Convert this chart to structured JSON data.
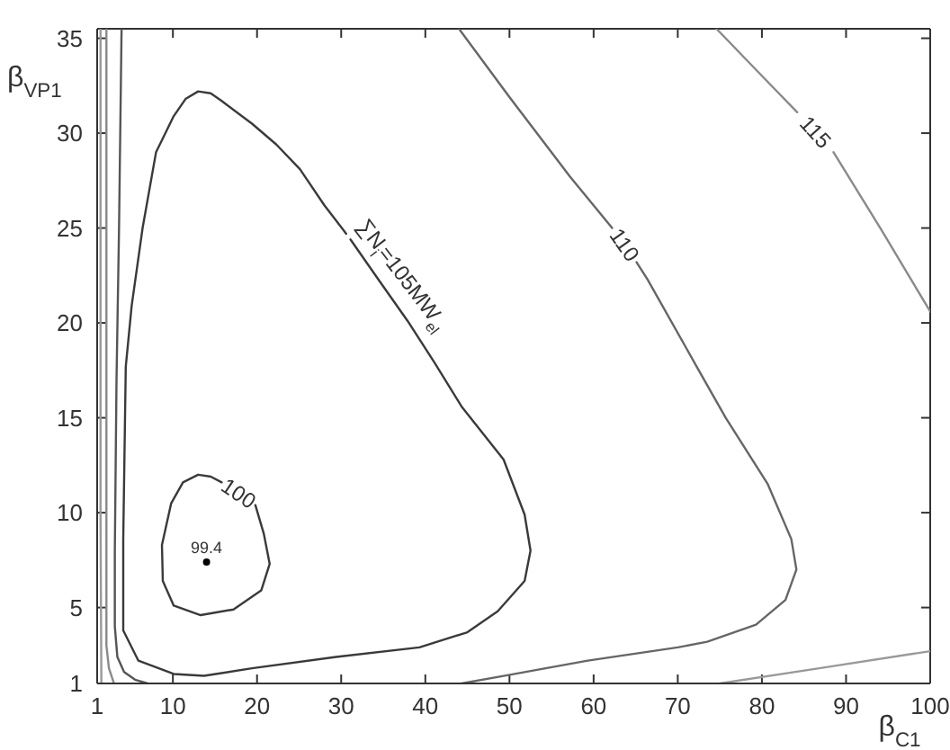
{
  "chart_data": {
    "type": "line",
    "xlabel": "β$_{C1}$",
    "ylabel": "β$_{VP1}$",
    "xlim": [
      1,
      100
    ],
    "ylim": [
      1,
      35.5
    ],
    "xticks": [
      1,
      10,
      20,
      30,
      40,
      50,
      60,
      70,
      80,
      90,
      100
    ],
    "yticks": [
      1,
      5,
      10,
      15,
      20,
      25,
      30,
      35
    ],
    "series": [
      {
        "color": "#3a3a3a",
        "x": [
          19.8,
          20.8,
          21.5,
          20.5,
          17.2,
          13.3,
          10.1,
          8.8,
          8.7,
          9.8,
          11.2,
          13.0,
          14.5,
          15.8
        ],
        "values": [
          10.4,
          8.9,
          7.3,
          5.9,
          4.9,
          4.6,
          5.1,
          6.4,
          8.3,
          10.5,
          11.6,
          12.0,
          11.9,
          11.6
        ]
      },
      {
        "color": "#3a3a3a",
        "x": [
          31.1,
          34.4,
          37.9,
          41.1,
          44.3,
          49.3,
          51.8,
          52.5,
          51.8,
          48.6,
          45.0,
          39.3,
          29.4,
          19.4,
          13.7,
          10.1,
          5.9,
          4.1,
          4.1,
          4.4,
          5.1,
          6.4,
          8.0,
          10.1,
          11.5,
          13.0,
          14.5,
          15.8,
          19.4,
          22.3,
          25.1,
          28.0,
          30.6
        ],
        "values": [
          24.4,
          22.3,
          20.1,
          17.9,
          15.6,
          12.8,
          9.9,
          8.0,
          6.4,
          4.8,
          3.7,
          2.9,
          2.4,
          1.8,
          1.4,
          1.5,
          2.2,
          3.8,
          8.6,
          17.7,
          20.9,
          25.0,
          29.0,
          30.9,
          31.8,
          32.2,
          32.1,
          31.7,
          30.5,
          29.4,
          28.1,
          26.2,
          24.7
        ]
      },
      {
        "color": "#666666",
        "x": [
          44.0,
          50.0,
          57.2,
          62.2,
          63.7,
          65.1,
          66.4,
          72.5,
          75.7,
          80.7,
          83.5,
          84.1,
          82.8,
          79.3,
          73.5,
          70.0,
          59.3,
          49.3,
          44.3
        ],
        "values": [
          35.5,
          31.9,
          27.7,
          25.0,
          null,
          23.2,
          22.3,
          17.5,
          15.0,
          11.5,
          8.6,
          7.0,
          5.4,
          4.1,
          3.2,
          2.9,
          2.2,
          1.4,
          1.0
        ]
      },
      {
        "color": "#8a8a8a",
        "x": [
          74.6,
          79.6,
          84.2,
          86.4,
          88.5,
          94.2,
          100
        ],
        "values": [
          35.5,
          33.2,
          31.1,
          null,
          29.0,
          24.9,
          20.6
        ]
      },
      {
        "color": "#999999",
        "x": [
          75,
          86.8,
          100
        ],
        "values": [
          1,
          1.8,
          2.7
        ]
      },
      {
        "color": "#999999",
        "x": [
          1.4,
          1.4,
          1.5
        ],
        "values": [
          35.5,
          10,
          1
        ]
      },
      {
        "color": "#8a8a8a",
        "x": [
          2.1,
          2.1,
          2.4,
          3.0
        ],
        "values": [
          35.5,
          3.0,
          1.8,
          1
        ]
      },
      {
        "color": "#555555",
        "x": [
          3.9,
          3.6,
          3.3,
          3.1,
          3.1,
          3.4,
          4.2,
          5.5,
          7.0
        ],
        "values": [
          35.5,
          25,
          17,
          8,
          4,
          2.4,
          1.6,
          1.2,
          1.0
        ]
      },
      {
        "type": "scatter",
        "name": "99.4",
        "marker": "circle",
        "color": "#000000",
        "x": [
          14
        ],
        "values": [
          7.4
        ]
      }
    ],
    "annotations": [
      {
        "text": "100",
        "x": 15.8,
        "y": 11.6
      },
      {
        "text": "∑N$_{i}$=105MW$_{el}$",
        "x": 30.6,
        "y": 24.7
      },
      {
        "text": "110",
        "x": 62.2,
        "y": 25.0
      },
      {
        "text": "115",
        "x": 84.2,
        "y": 31.1
      }
    ]
  }
}
